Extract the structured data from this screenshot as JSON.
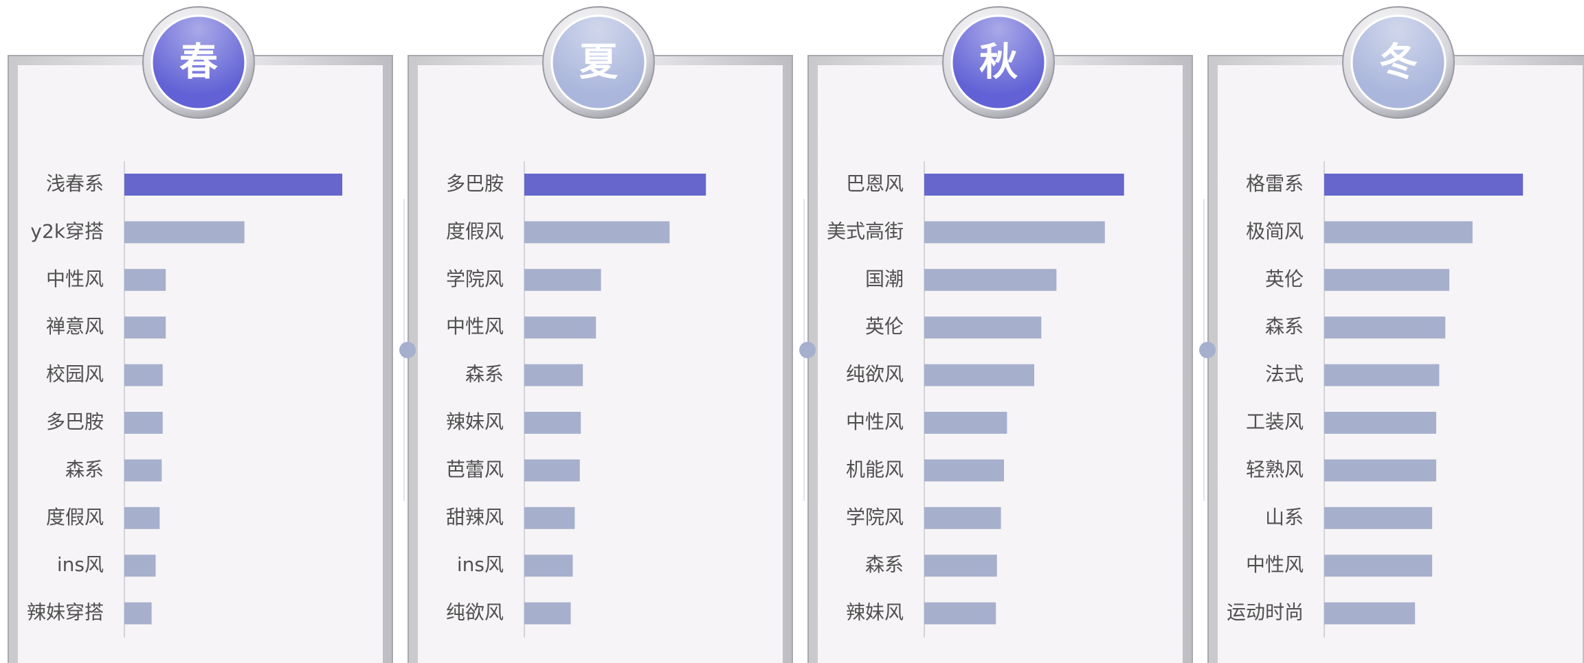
{
  "chart_data": [
    {
      "type": "bar",
      "orientation": "horizontal",
      "title": "春",
      "badge_color": "#6262d6",
      "categories": [
        "浅春系",
        "y2k穿搭",
        "中性风",
        "禅意风",
        "校园风",
        "多巴胺",
        "森系",
        "度假风",
        "ins风",
        "辣妹穿搭"
      ],
      "values": [
        216,
        119,
        41,
        41,
        38,
        38,
        37,
        35,
        31,
        27
      ],
      "color": "#a6b0cd",
      "highlight_color": "#6666cc",
      "xlim": [
        0,
        250
      ]
    },
    {
      "type": "bar",
      "orientation": "horizontal",
      "title": "夏",
      "badge_color": "#aab6dc",
      "categories": [
        "多巴胺",
        "度假风",
        "学院风",
        "中性风",
        "森系",
        "辣妹风",
        "芭蕾风",
        "甜辣风",
        "ins风",
        "纯欲风"
      ],
      "values": [
        180,
        144,
        76,
        71,
        58,
        56,
        55,
        50,
        48,
        46
      ],
      "color": "#a6b0cd",
      "highlight_color": "#6666cc",
      "xlim": [
        0,
        250
      ]
    },
    {
      "type": "bar",
      "orientation": "horizontal",
      "title": "秋",
      "badge_color": "#6262d6",
      "categories": [
        "巴恩风",
        "美式高街",
        "国潮",
        "英伦",
        "纯欲风",
        "中性风",
        "机能风",
        "学院风",
        "森系",
        "辣妹风"
      ],
      "values": [
        198,
        179,
        131,
        116,
        109,
        82,
        79,
        76,
        72,
        71
      ],
      "color": "#a6b0cd",
      "highlight_color": "#6666cc",
      "xlim": [
        0,
        250
      ]
    },
    {
      "type": "bar",
      "orientation": "horizontal",
      "title": "冬",
      "badge_color": "#aab6dc",
      "categories": [
        "格雷系",
        "极简风",
        "英伦",
        "森系",
        "法式",
        "工装风",
        "轻熟风",
        "山系",
        "中性风",
        "运动时尚"
      ],
      "values": [
        197,
        147,
        124,
        120,
        114,
        111,
        111,
        107,
        107,
        90
      ],
      "color": "#a6b0cd",
      "highlight_color": "#6666cc",
      "xlim": [
        0,
        250
      ]
    }
  ]
}
